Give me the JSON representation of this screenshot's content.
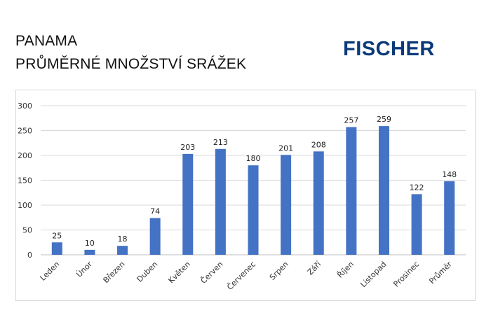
{
  "header": {
    "title_line1": "PANAMA",
    "title_line2": "PRŮMĚRNÉ MNOŽSTVÍ SRÁŽEK",
    "logo_text": "FISCHER"
  },
  "colors": {
    "bar": "#4472c4",
    "logo": "#0b3a7a",
    "grid": "#d9d9d9"
  },
  "chart_data": {
    "type": "bar",
    "categories": [
      "Leden",
      "Únor",
      "Březen",
      "Duben",
      "Květen",
      "Červen",
      "Červenec",
      "Srpen",
      "Září",
      "Říjen",
      "Listopad",
      "Prosinec",
      "Průměr"
    ],
    "values": [
      25,
      10,
      18,
      74,
      203,
      213,
      180,
      201,
      208,
      257,
      259,
      122,
      148
    ],
    "title": "",
    "xlabel": "",
    "ylabel": "",
    "ylim": [
      0,
      300
    ],
    "yticks": [
      0,
      50,
      100,
      150,
      200,
      250,
      300
    ],
    "grid": true,
    "legend": "none"
  }
}
